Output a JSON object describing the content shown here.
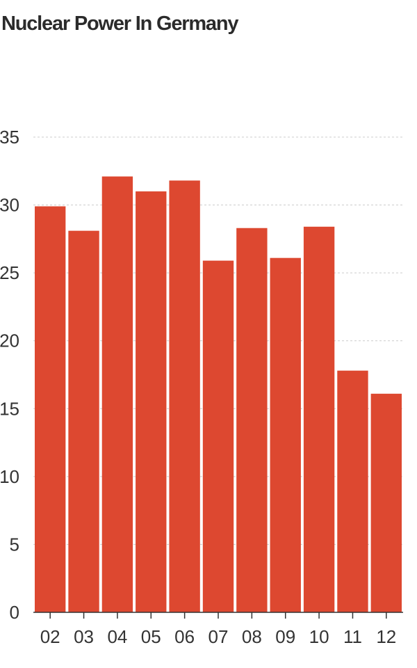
{
  "chart_data": {
    "type": "bar",
    "title": "Nuclear Power In Germany",
    "xlabel": "",
    "ylabel": "",
    "categories": [
      "02",
      "03",
      "04",
      "05",
      "06",
      "07",
      "08",
      "09",
      "10",
      "11",
      "12"
    ],
    "values": [
      29.9,
      28.1,
      32.1,
      31.0,
      31.8,
      25.9,
      28.3,
      26.1,
      28.4,
      17.8,
      16.1
    ],
    "ylim": [
      0,
      35
    ],
    "yticks": [
      "0",
      "5",
      "10",
      "15",
      "20",
      "25",
      "30",
      "35"
    ],
    "grid": true,
    "legend": "none",
    "colors": {
      "bar": "#dd4830",
      "grid": "#cccccc",
      "axis": "#333333",
      "text": "#333333"
    }
  }
}
